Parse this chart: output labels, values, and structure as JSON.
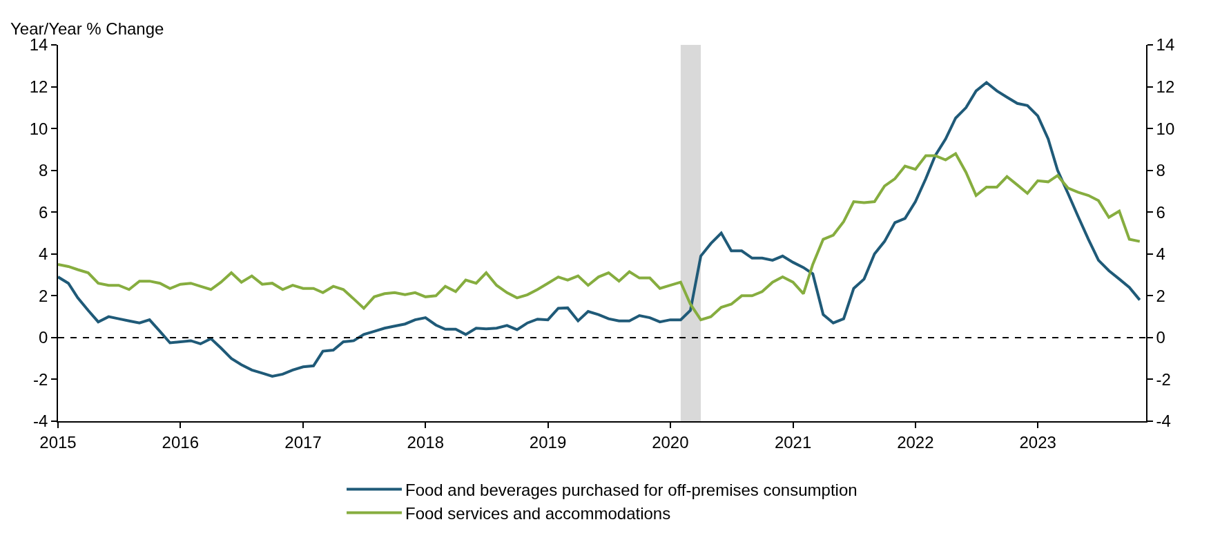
{
  "chart_data": {
    "type": "line",
    "ylabel": "Year/Year % Change",
    "x": [
      "2015-01",
      "2015-02",
      "2015-03",
      "2015-04",
      "2015-05",
      "2015-06",
      "2015-07",
      "2015-08",
      "2015-09",
      "2015-10",
      "2015-11",
      "2015-12",
      "2016-01",
      "2016-02",
      "2016-03",
      "2016-04",
      "2016-05",
      "2016-06",
      "2016-07",
      "2016-08",
      "2016-09",
      "2016-10",
      "2016-11",
      "2016-12",
      "2017-01",
      "2017-02",
      "2017-03",
      "2017-04",
      "2017-05",
      "2017-06",
      "2017-07",
      "2017-08",
      "2017-09",
      "2017-10",
      "2017-11",
      "2017-12",
      "2018-01",
      "2018-02",
      "2018-03",
      "2018-04",
      "2018-05",
      "2018-06",
      "2018-07",
      "2018-08",
      "2018-09",
      "2018-10",
      "2018-11",
      "2018-12",
      "2019-01",
      "2019-02",
      "2019-03",
      "2019-04",
      "2019-05",
      "2019-06",
      "2019-07",
      "2019-08",
      "2019-09",
      "2019-10",
      "2019-11",
      "2019-12",
      "2020-01",
      "2020-02",
      "2020-03",
      "2020-04",
      "2020-05",
      "2020-06",
      "2020-07",
      "2020-08",
      "2020-09",
      "2020-10",
      "2020-11",
      "2020-12",
      "2021-01",
      "2021-02",
      "2021-03",
      "2021-04",
      "2021-05",
      "2021-06",
      "2021-07",
      "2021-08",
      "2021-09",
      "2021-10",
      "2021-11",
      "2021-12",
      "2022-01",
      "2022-02",
      "2022-03",
      "2022-04",
      "2022-05",
      "2022-06",
      "2022-07",
      "2022-08",
      "2022-09",
      "2022-10",
      "2022-11",
      "2022-12",
      "2023-01",
      "2023-02",
      "2023-03",
      "2023-04",
      "2023-05",
      "2023-06",
      "2023-07",
      "2023-08",
      "2023-09",
      "2023-10",
      "2023-11"
    ],
    "series": [
      {
        "name": "Food and beverages purchased for off-premises consumption",
        "color": "#1f5a78",
        "values": [
          2.9,
          2.6,
          1.9,
          1.3,
          0.75,
          1.0,
          0.9,
          0.8,
          0.7,
          0.85,
          0.3,
          -0.25,
          -0.2,
          -0.15,
          -0.3,
          -0.05,
          -0.5,
          -1.0,
          -1.3,
          -1.55,
          -1.7,
          -1.85,
          -1.75,
          -1.55,
          -1.4,
          -1.35,
          -0.65,
          -0.6,
          -0.2,
          -0.15,
          0.15,
          0.3,
          0.45,
          0.55,
          0.65,
          0.85,
          0.95,
          0.6,
          0.4,
          0.4,
          0.15,
          0.45,
          0.42,
          0.45,
          0.58,
          0.38,
          0.7,
          0.88,
          0.85,
          1.4,
          1.42,
          0.8,
          1.25,
          1.1,
          0.9,
          0.8,
          0.8,
          1.05,
          0.95,
          0.75,
          0.85,
          0.85,
          1.3,
          3.9,
          4.5,
          5.0,
          4.15,
          4.15,
          3.8,
          3.8,
          3.7,
          3.9,
          3.6,
          3.35,
          3.05,
          1.1,
          0.7,
          0.9,
          2.35,
          2.8,
          4.0,
          4.6,
          5.5,
          5.7,
          6.5,
          7.6,
          8.7,
          9.5,
          10.5,
          11.0,
          11.8,
          12.2,
          11.8,
          11.5,
          11.2,
          11.1,
          10.6,
          9.5,
          8.0,
          6.9,
          5.8,
          4.7,
          3.7,
          3.2,
          2.8,
          2.4,
          1.8
        ]
      },
      {
        "name": "Food services and accommodations",
        "color": "#86ad3f",
        "values": [
          3.5,
          3.4,
          3.25,
          3.1,
          2.6,
          2.5,
          2.5,
          2.3,
          2.7,
          2.7,
          2.6,
          2.35,
          2.55,
          2.6,
          2.45,
          2.3,
          2.65,
          3.1,
          2.65,
          2.95,
          2.55,
          2.6,
          2.3,
          2.5,
          2.35,
          2.35,
          2.15,
          2.45,
          2.3,
          1.85,
          1.4,
          1.95,
          2.1,
          2.15,
          2.05,
          2.15,
          1.95,
          2.0,
          2.45,
          2.2,
          2.75,
          2.6,
          3.1,
          2.5,
          2.15,
          1.9,
          2.05,
          2.3,
          2.6,
          2.9,
          2.75,
          2.95,
          2.5,
          2.9,
          3.1,
          2.7,
          3.15,
          2.85,
          2.85,
          2.35,
          2.5,
          2.65,
          1.6,
          0.85,
          1.0,
          1.45,
          1.6,
          2.0,
          2.0,
          2.2,
          2.65,
          2.9,
          2.65,
          2.1,
          3.5,
          4.7,
          4.9,
          5.55,
          6.5,
          6.45,
          6.5,
          7.25,
          7.6,
          8.2,
          8.05,
          8.7,
          8.7,
          8.5,
          8.8,
          7.9,
          6.8,
          7.2,
          7.2,
          7.7,
          7.3,
          6.9,
          7.5,
          7.45,
          7.75,
          7.15,
          6.95,
          6.8,
          6.55,
          5.75,
          6.05,
          4.7,
          4.6
        ]
      }
    ],
    "xlim": [
      "2015-01-01",
      "2023-11-20"
    ],
    "xticks": [
      "2015",
      "2016",
      "2017",
      "2018",
      "2019",
      "2020",
      "2021",
      "2022",
      "2023"
    ],
    "ylim": [
      -4,
      14
    ],
    "yticks": [
      -4,
      -2,
      0,
      2,
      4,
      6,
      8,
      10,
      12,
      14
    ],
    "y2lim": [
      -4,
      14
    ],
    "y2ticks": [
      -4,
      -2,
      0,
      2,
      4,
      6,
      8,
      10,
      12,
      14
    ],
    "ref_lines": [
      {
        "axis": "y",
        "value": 0,
        "color": "#000000",
        "line_style": "dashed"
      }
    ],
    "bands": [
      {
        "axis": "x",
        "from": "2020-02",
        "to": "2020-04",
        "color": "#d9d9d9"
      }
    ],
    "grid": false,
    "legend": "bottom",
    "marker": "none",
    "line_style": "solid"
  }
}
